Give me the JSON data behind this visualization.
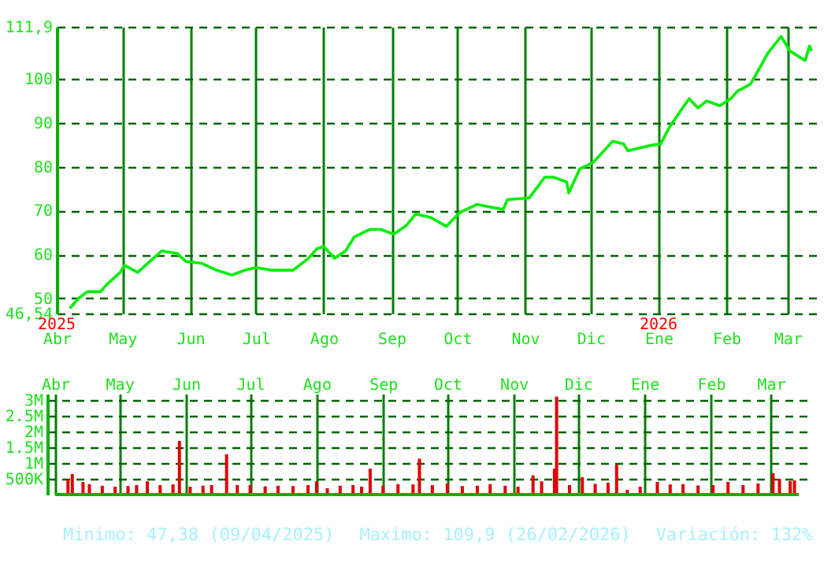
{
  "chart_data": [
    {
      "type": "line",
      "x": [
        "2025-04-07",
        "2025-04-11",
        "2025-04-15",
        "2025-04-21",
        "2025-04-24",
        "2025-04-30",
        "2025-05-02",
        "2025-05-08",
        "2025-05-14",
        "2025-05-19",
        "2025-05-26",
        "2025-05-30",
        "2025-06-06",
        "2025-06-13",
        "2025-06-20",
        "2025-06-26",
        "2025-07-01",
        "2025-07-08",
        "2025-07-16",
        "2025-07-18",
        "2025-07-25",
        "2025-07-29",
        "2025-08-01",
        "2025-08-06",
        "2025-08-11",
        "2025-08-15",
        "2025-08-22",
        "2025-08-27",
        "2025-09-02",
        "2025-09-08",
        "2025-09-12",
        "2025-09-19",
        "2025-09-26",
        "2025-10-02",
        "2025-10-10",
        "2025-10-16",
        "2025-10-22",
        "2025-10-24",
        "2025-11-03",
        "2025-11-10",
        "2025-11-14",
        "2025-11-20",
        "2025-11-21",
        "2025-11-26",
        "2025-12-02",
        "2025-12-05",
        "2025-12-11",
        "2025-12-16",
        "2025-12-18",
        "2025-12-22",
        "2025-12-29",
        "2026-01-02",
        "2026-01-06",
        "2026-01-12",
        "2026-01-15",
        "2026-01-19",
        "2026-01-23",
        "2026-01-29",
        "2026-02-03",
        "2026-02-06",
        "2026-02-12",
        "2026-02-17",
        "2026-02-20",
        "2026-02-26",
        "2026-03-02",
        "2026-03-09",
        "2026-03-11",
        "2026-03-12"
      ],
      "series": [
        {
          "color": "#00ee00",
          "values": [
            47.7,
            50.0,
            51.5,
            51.5,
            53.2,
            55.9,
            57.5,
            55.9,
            58.6,
            60.8,
            60.2,
            58.4,
            58.0,
            56.4,
            55.3,
            56.4,
            57.0,
            56.4,
            56.4,
            56.4,
            59.1,
            61.3,
            61.8,
            59.1,
            60.8,
            64.0,
            65.7,
            65.7,
            64.6,
            66.7,
            69.2,
            68.4,
            66.4,
            69.5,
            71.4,
            70.8,
            70.3,
            72.5,
            72.9,
            77.6,
            77.6,
            76.5,
            74.0,
            79.5,
            80.9,
            82.5,
            85.8,
            85.2,
            83.6,
            84.1,
            84.9,
            85.2,
            89.0,
            93.4,
            95.5,
            93.4,
            95.0,
            93.9,
            95.5,
            97.2,
            98.8,
            103.2,
            105.9,
            109.7,
            106.4,
            104.2,
            107.5,
            106.4
          ]
        }
      ],
      "xlim": [
        "2025-04-01",
        "2026-03-14"
      ],
      "xticks": [
        {
          "value": "2025-04-01",
          "label": "Abr"
        },
        {
          "value": "2025-05-01",
          "label": "May"
        },
        {
          "value": "2025-06-01",
          "label": "Jun"
        },
        {
          "value": "2025-07-01",
          "label": "Jul"
        },
        {
          "value": "2025-08-01",
          "label": "Ago"
        },
        {
          "value": "2025-09-01",
          "label": "Sep"
        },
        {
          "value": "2025-10-01",
          "label": "Oct"
        },
        {
          "value": "2025-11-01",
          "label": "Nov"
        },
        {
          "value": "2025-12-01",
          "label": "Dic"
        },
        {
          "value": "2026-01-01",
          "label": "Ene"
        },
        {
          "value": "2026-02-01",
          "label": "Feb"
        },
        {
          "value": "2026-03-01",
          "label": "Mar"
        }
      ],
      "ylim": [
        46.54,
        111.9
      ],
      "yticks": [
        {
          "value": 46.54,
          "label": "46,54"
        },
        50,
        60,
        70,
        80,
        90,
        100,
        {
          "value": 111.9,
          "label": "111,9"
        }
      ],
      "grid": true,
      "annotations": [
        "2025",
        "2026"
      ]
    },
    {
      "type": "bar",
      "x": [
        "2025-04-07",
        "2025-04-09",
        "2025-04-14",
        "2025-04-17",
        "2025-04-23",
        "2025-04-29",
        "2025-05-05",
        "2025-05-09",
        "2025-05-14",
        "2025-05-20",
        "2025-05-26",
        "2025-05-29",
        "2025-06-03",
        "2025-06-09",
        "2025-06-13",
        "2025-06-20",
        "2025-06-25",
        "2025-07-01",
        "2025-07-08",
        "2025-07-14",
        "2025-07-21",
        "2025-07-28",
        "2025-08-01",
        "2025-08-06",
        "2025-08-12",
        "2025-08-18",
        "2025-08-22",
        "2025-08-26",
        "2025-09-01",
        "2025-09-08",
        "2025-09-15",
        "2025-09-18",
        "2025-09-24",
        "2025-10-01",
        "2025-10-08",
        "2025-10-15",
        "2025-10-21",
        "2025-10-28",
        "2025-11-03",
        "2025-11-10",
        "2025-11-14",
        "2025-11-20",
        "2025-11-21",
        "2025-11-27",
        "2025-12-03",
        "2025-12-09",
        "2025-12-15",
        "2025-12-19",
        "2025-12-24",
        "2025-12-30",
        "2026-01-07",
        "2026-01-13",
        "2026-01-19",
        "2026-01-26",
        "2026-02-02",
        "2026-02-09",
        "2026-02-16",
        "2026-02-23",
        "2026-03-02",
        "2026-03-05",
        "2026-03-10",
        "2026-03-12"
      ],
      "series": [
        {
          "color": "#e00000",
          "values": [
            480000,
            650000,
            400000,
            330000,
            280000,
            250000,
            270000,
            300000,
            420000,
            300000,
            320000,
            1700000,
            250000,
            280000,
            300000,
            1280000,
            300000,
            300000,
            260000,
            280000,
            270000,
            300000,
            420000,
            200000,
            280000,
            300000,
            250000,
            820000,
            280000,
            330000,
            320000,
            1140000,
            300000,
            350000,
            270000,
            280000,
            330000,
            280000,
            250000,
            610000,
            420000,
            820000,
            3110000,
            300000,
            550000,
            340000,
            380000,
            950000,
            150000,
            250000,
            400000,
            320000,
            330000,
            290000,
            300000,
            400000,
            300000,
            350000,
            680000,
            500000,
            430000,
            450000
          ]
        }
      ],
      "xlim": [
        "2025-04-01",
        "2026-03-14"
      ],
      "xticks": [
        {
          "value": "2025-04-01",
          "label": "Abr"
        },
        {
          "value": "2025-05-01",
          "label": "May"
        },
        {
          "value": "2025-06-01",
          "label": "Jun"
        },
        {
          "value": "2025-07-01",
          "label": "Jul"
        },
        {
          "value": "2025-08-01",
          "label": "Ago"
        },
        {
          "value": "2025-09-01",
          "label": "Sep"
        },
        {
          "value": "2025-10-01",
          "label": "Oct"
        },
        {
          "value": "2025-11-01",
          "label": "Nov"
        },
        {
          "value": "2025-12-01",
          "label": "Dic"
        },
        {
          "value": "2026-01-01",
          "label": "Ene"
        },
        {
          "value": "2026-02-01",
          "label": "Feb"
        },
        {
          "value": "2026-03-01",
          "label": "Mar"
        }
      ],
      "ylim": [
        0,
        3200000
      ],
      "yticks": [
        {
          "value": 500000,
          "label": "500K"
        },
        {
          "value": 1000000,
          "label": "1M"
        },
        {
          "value": 1500000,
          "label": "1.5M"
        },
        {
          "value": 2000000,
          "label": "2M"
        },
        {
          "value": 2500000,
          "label": "2.5M"
        },
        {
          "value": 3000000,
          "label": "3M"
        }
      ],
      "grid": true,
      "annotations": [
        "Minimo: 47,38 (09/04/2025)",
        "Maximo: 109,9 (26/02/2026)",
        "Variación: 132%"
      ]
    }
  ]
}
